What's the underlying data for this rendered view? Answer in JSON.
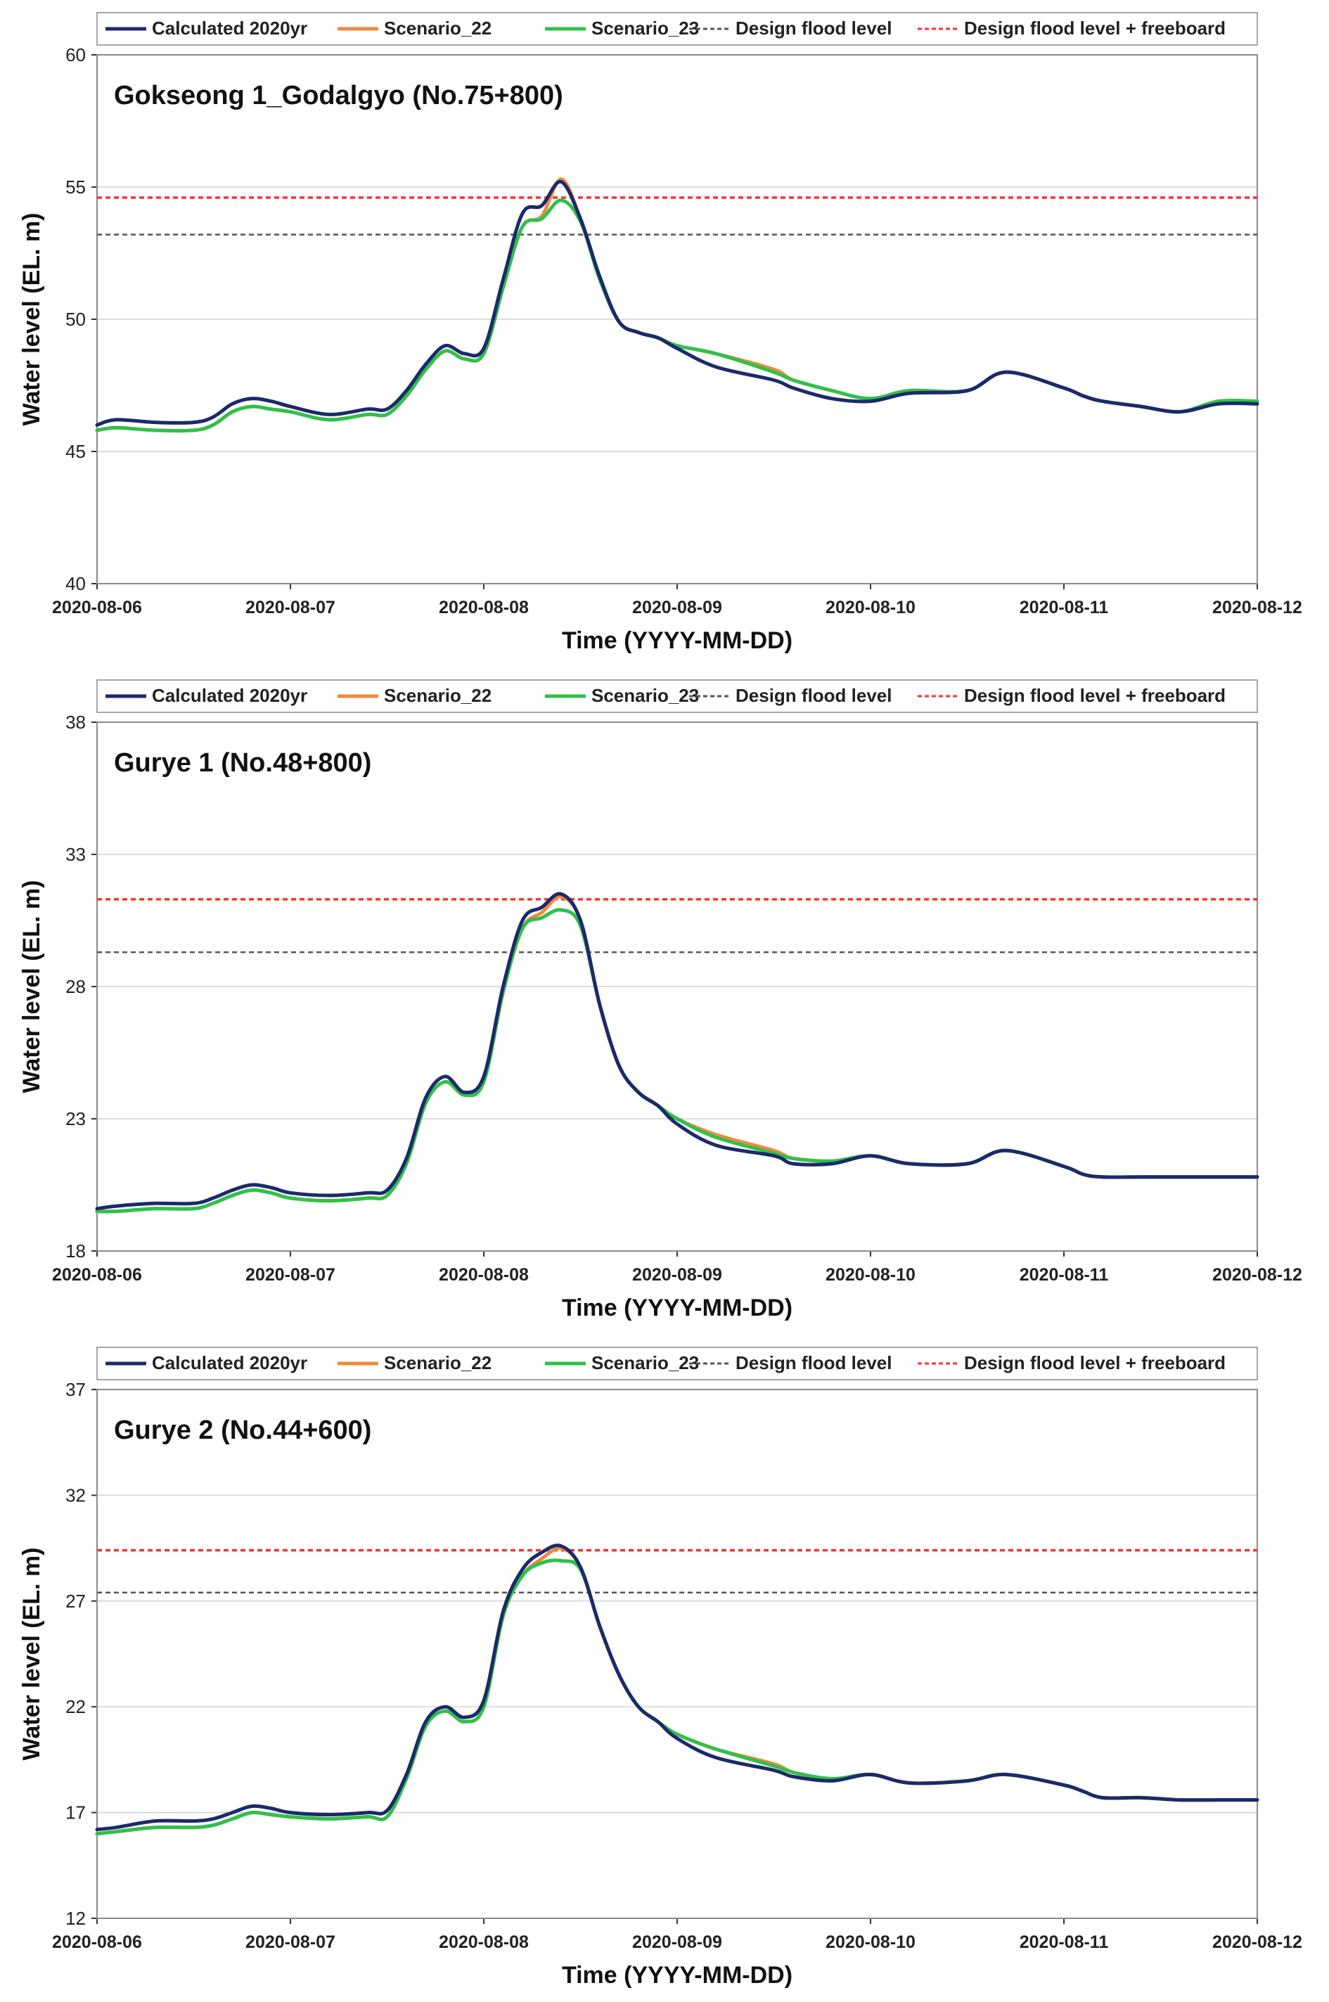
{
  "legend": {
    "entries": [
      {
        "label": "Calculated 2020yr",
        "color": "#1b2a6b",
        "style": "solid"
      },
      {
        "label": "Scenario_22",
        "color": "#f08a3c",
        "style": "solid"
      },
      {
        "label": "Scenario_23",
        "color": "#2fc14a",
        "style": "solid"
      },
      {
        "label": "Design flood level",
        "color": "#555555",
        "style": "dashed"
      },
      {
        "label": "Design flood level + freeboard",
        "color": "#ff3030",
        "style": "dashed"
      }
    ]
  },
  "chart_data": [
    {
      "type": "line",
      "title": "Gokseong 1_Godalgyo (No.75+800)",
      "xlabel": "Time (YYYY-MM-DD)",
      "ylabel": "Water level (EL. m)",
      "x_ticks": [
        "2020-08-06",
        "2020-08-07",
        "2020-08-08",
        "2020-08-09",
        "2020-08-10",
        "2020-08-11",
        "2020-08-12"
      ],
      "xlim": [
        0,
        6
      ],
      "ylim": [
        40,
        60
      ],
      "y_ticks": [
        40,
        45,
        50,
        55,
        60
      ],
      "grid": "horizontal",
      "legend_position": "top",
      "reference_lines": [
        {
          "name": "Design flood level",
          "value": 53.2
        },
        {
          "name": "Design flood level + freeboard",
          "value": 54.6
        }
      ],
      "series": [
        {
          "name": "Calculated 2020yr",
          "x": [
            0,
            0.1,
            0.3,
            0.5,
            0.6,
            0.7,
            0.8,
            0.9,
            1.0,
            1.2,
            1.4,
            1.5,
            1.6,
            1.7,
            1.8,
            1.9,
            2.0,
            2.1,
            2.2,
            2.3,
            2.4,
            2.5,
            2.6,
            2.7,
            2.8,
            2.9,
            3.0,
            3.2,
            3.5,
            3.6,
            3.8,
            4.0,
            4.2,
            4.5,
            4.7,
            5.0,
            5.1,
            5.2,
            5.4,
            5.6,
            5.8,
            6.0
          ],
          "y": [
            46.0,
            46.2,
            46.1,
            46.1,
            46.3,
            46.8,
            47.0,
            46.9,
            46.7,
            46.4,
            46.6,
            46.6,
            47.3,
            48.3,
            49.0,
            48.7,
            48.9,
            51.5,
            54.0,
            54.3,
            55.2,
            53.8,
            51.6,
            49.9,
            49.5,
            49.3,
            48.9,
            48.2,
            47.7,
            47.4,
            47.0,
            46.9,
            47.2,
            47.3,
            48.0,
            47.4,
            47.1,
            46.9,
            46.7,
            46.5,
            46.8,
            46.8
          ]
        },
        {
          "name": "Scenario_22",
          "x": [
            0,
            0.1,
            0.3,
            0.5,
            0.6,
            0.7,
            0.8,
            0.9,
            1.0,
            1.2,
            1.4,
            1.5,
            1.6,
            1.7,
            1.8,
            1.9,
            2.0,
            2.1,
            2.2,
            2.3,
            2.4,
            2.5,
            2.6,
            2.7,
            2.8,
            2.9,
            3.0,
            3.2,
            3.5,
            3.6,
            3.8,
            4.0,
            4.2,
            4.5,
            4.7,
            5.0,
            5.1,
            5.2,
            5.4,
            5.6,
            5.8,
            6.0
          ],
          "y": [
            45.8,
            45.9,
            45.8,
            45.8,
            46.0,
            46.5,
            46.7,
            46.6,
            46.5,
            46.2,
            46.4,
            46.4,
            47.1,
            48.1,
            48.8,
            48.5,
            48.7,
            51.2,
            53.5,
            53.9,
            55.3,
            53.8,
            51.5,
            49.9,
            49.5,
            49.3,
            49.0,
            48.7,
            48.1,
            47.7,
            47.3,
            47.0,
            47.3,
            47.3,
            48.0,
            47.4,
            47.1,
            46.9,
            46.7,
            46.5,
            46.9,
            46.9
          ]
        },
        {
          "name": "Scenario_23",
          "x": [
            0,
            0.1,
            0.3,
            0.5,
            0.6,
            0.7,
            0.8,
            0.9,
            1.0,
            1.2,
            1.4,
            1.5,
            1.6,
            1.7,
            1.8,
            1.9,
            2.0,
            2.1,
            2.2,
            2.3,
            2.4,
            2.5,
            2.6,
            2.7,
            2.8,
            2.9,
            3.0,
            3.2,
            3.5,
            3.6,
            3.8,
            4.0,
            4.2,
            4.5,
            4.7,
            5.0,
            5.1,
            5.2,
            5.4,
            5.6,
            5.8,
            6.0
          ],
          "y": [
            45.8,
            45.9,
            45.8,
            45.8,
            46.0,
            46.5,
            46.7,
            46.6,
            46.5,
            46.2,
            46.4,
            46.4,
            47.1,
            48.1,
            48.8,
            48.5,
            48.7,
            51.2,
            53.5,
            53.8,
            54.5,
            53.7,
            51.5,
            49.9,
            49.5,
            49.3,
            49.0,
            48.7,
            48.0,
            47.7,
            47.3,
            47.0,
            47.3,
            47.3,
            48.0,
            47.4,
            47.1,
            46.9,
            46.7,
            46.5,
            46.9,
            46.9
          ]
        }
      ]
    },
    {
      "type": "line",
      "title": "Gurye 1 (No.48+800)",
      "xlabel": "Time (YYYY-MM-DD)",
      "ylabel": "Water level (EL. m)",
      "x_ticks": [
        "2020-08-06",
        "2020-08-07",
        "2020-08-08",
        "2020-08-09",
        "2020-08-10",
        "2020-08-11",
        "2020-08-12"
      ],
      "xlim": [
        0,
        6
      ],
      "ylim": [
        18,
        38
      ],
      "y_ticks": [
        18,
        23,
        28,
        33,
        38
      ],
      "grid": "horizontal",
      "legend_position": "top",
      "reference_lines": [
        {
          "name": "Design flood level",
          "value": 29.3
        },
        {
          "name": "Design flood level + freeboard",
          "value": 31.3
        }
      ],
      "series": [
        {
          "name": "Calculated 2020yr",
          "x": [
            0,
            0.1,
            0.3,
            0.5,
            0.6,
            0.7,
            0.8,
            0.9,
            1.0,
            1.2,
            1.4,
            1.5,
            1.6,
            1.7,
            1.8,
            1.9,
            2.0,
            2.1,
            2.2,
            2.3,
            2.4,
            2.5,
            2.6,
            2.7,
            2.8,
            2.9,
            3.0,
            3.2,
            3.5,
            3.6,
            3.8,
            4.0,
            4.2,
            4.5,
            4.7,
            5.0,
            5.1,
            5.2,
            5.4,
            5.6,
            5.8,
            6.0
          ],
          "y": [
            19.6,
            19.7,
            19.8,
            19.8,
            20.0,
            20.3,
            20.5,
            20.4,
            20.2,
            20.1,
            20.2,
            20.3,
            21.5,
            23.8,
            24.6,
            24.0,
            24.6,
            28.0,
            30.5,
            31.0,
            31.5,
            30.5,
            27.3,
            25.0,
            24.0,
            23.5,
            22.8,
            22.0,
            21.6,
            21.3,
            21.3,
            21.6,
            21.3,
            21.3,
            21.8,
            21.2,
            20.9,
            20.8,
            20.8,
            20.8,
            20.8,
            20.8
          ]
        },
        {
          "name": "Scenario_22",
          "x": [
            0,
            0.1,
            0.3,
            0.5,
            0.6,
            0.7,
            0.8,
            0.9,
            1.0,
            1.2,
            1.4,
            1.5,
            1.6,
            1.7,
            1.8,
            1.9,
            2.0,
            2.1,
            2.2,
            2.3,
            2.4,
            2.5,
            2.6,
            2.7,
            2.8,
            2.9,
            3.0,
            3.2,
            3.5,
            3.6,
            3.8,
            4.0,
            4.2,
            4.5,
            4.7,
            5.0,
            5.1,
            5.2,
            5.4,
            5.6,
            5.8,
            6.0
          ],
          "y": [
            19.5,
            19.5,
            19.6,
            19.6,
            19.8,
            20.1,
            20.3,
            20.2,
            20.0,
            19.9,
            20.0,
            20.1,
            21.3,
            23.6,
            24.4,
            23.9,
            24.4,
            27.8,
            30.2,
            30.8,
            31.4,
            30.5,
            27.3,
            25.0,
            24.0,
            23.5,
            23.0,
            22.4,
            21.8,
            21.5,
            21.4,
            21.6,
            21.3,
            21.3,
            21.8,
            21.2,
            20.9,
            20.8,
            20.8,
            20.8,
            20.8,
            20.8
          ]
        },
        {
          "name": "Scenario_23",
          "x": [
            0,
            0.1,
            0.3,
            0.5,
            0.6,
            0.7,
            0.8,
            0.9,
            1.0,
            1.2,
            1.4,
            1.5,
            1.6,
            1.7,
            1.8,
            1.9,
            2.0,
            2.1,
            2.2,
            2.3,
            2.4,
            2.5,
            2.6,
            2.7,
            2.8,
            2.9,
            3.0,
            3.2,
            3.5,
            3.6,
            3.8,
            4.0,
            4.2,
            4.5,
            4.7,
            5.0,
            5.1,
            5.2,
            5.4,
            5.6,
            5.8,
            6.0
          ],
          "y": [
            19.5,
            19.5,
            19.6,
            19.6,
            19.8,
            20.1,
            20.3,
            20.2,
            20.0,
            19.9,
            20.0,
            20.1,
            21.3,
            23.6,
            24.4,
            23.9,
            24.4,
            27.8,
            30.2,
            30.6,
            30.9,
            30.3,
            27.3,
            25.0,
            24.0,
            23.5,
            23.0,
            22.3,
            21.7,
            21.5,
            21.4,
            21.6,
            21.3,
            21.3,
            21.8,
            21.2,
            20.9,
            20.8,
            20.8,
            20.8,
            20.8,
            20.8
          ]
        }
      ]
    },
    {
      "type": "line",
      "title": "Gurye 2 (No.44+600)",
      "xlabel": "Time (YYYY-MM-DD)",
      "ylabel": "Water level (EL. m)",
      "x_ticks": [
        "2020-08-06",
        "2020-08-07",
        "2020-08-08",
        "2020-08-09",
        "2020-08-10",
        "2020-08-11",
        "2020-08-12"
      ],
      "xlim": [
        0,
        6
      ],
      "ylim": [
        12,
        37
      ],
      "y_ticks": [
        12,
        17,
        22,
        27,
        32,
        37
      ],
      "grid": "horizontal",
      "legend_position": "top",
      "reference_lines": [
        {
          "name": "Design flood level",
          "value": 27.4
        },
        {
          "name": "Design flood level + freeboard",
          "value": 29.4
        }
      ],
      "series": [
        {
          "name": "Calculated 2020yr",
          "x": [
            0,
            0.1,
            0.3,
            0.5,
            0.6,
            0.7,
            0.8,
            0.9,
            1.0,
            1.2,
            1.4,
            1.5,
            1.6,
            1.7,
            1.8,
            1.9,
            2.0,
            2.1,
            2.2,
            2.3,
            2.4,
            2.5,
            2.6,
            2.7,
            2.8,
            2.9,
            3.0,
            3.2,
            3.5,
            3.6,
            3.8,
            4.0,
            4.2,
            4.5,
            4.7,
            5.0,
            5.1,
            5.2,
            5.4,
            5.6,
            5.8,
            6.0
          ],
          "y": [
            16.2,
            16.3,
            16.6,
            16.6,
            16.7,
            17.0,
            17.3,
            17.2,
            17.0,
            16.9,
            17.0,
            17.1,
            18.8,
            21.3,
            22.0,
            21.5,
            22.3,
            26.5,
            28.5,
            29.3,
            29.6,
            28.6,
            25.8,
            23.5,
            22.0,
            21.3,
            20.5,
            19.6,
            19.0,
            18.7,
            18.5,
            18.8,
            18.4,
            18.5,
            18.8,
            18.3,
            18.0,
            17.7,
            17.7,
            17.6,
            17.6,
            17.6
          ]
        },
        {
          "name": "Scenario_22",
          "x": [
            0,
            0.1,
            0.3,
            0.5,
            0.6,
            0.7,
            0.8,
            0.9,
            1.0,
            1.2,
            1.4,
            1.5,
            1.6,
            1.7,
            1.8,
            1.9,
            2.0,
            2.1,
            2.2,
            2.3,
            2.4,
            2.5,
            2.6,
            2.7,
            2.8,
            2.9,
            3.0,
            3.2,
            3.5,
            3.6,
            3.8,
            4.0,
            4.2,
            4.5,
            4.7,
            5.0,
            5.1,
            5.2,
            5.4,
            5.6,
            5.8,
            6.0
          ],
          "y": [
            16.0,
            16.1,
            16.3,
            16.3,
            16.4,
            16.7,
            17.0,
            16.9,
            16.8,
            16.7,
            16.8,
            16.8,
            18.6,
            21.1,
            21.8,
            21.3,
            22.0,
            26.3,
            28.2,
            29.0,
            29.5,
            28.6,
            25.8,
            23.5,
            22.0,
            21.3,
            20.7,
            20.0,
            19.3,
            18.9,
            18.6,
            18.8,
            18.4,
            18.5,
            18.8,
            18.3,
            18.0,
            17.7,
            17.7,
            17.6,
            17.6,
            17.6
          ]
        },
        {
          "name": "Scenario_23",
          "x": [
            0,
            0.1,
            0.3,
            0.5,
            0.6,
            0.7,
            0.8,
            0.9,
            1.0,
            1.2,
            1.4,
            1.5,
            1.6,
            1.7,
            1.8,
            1.9,
            2.0,
            2.1,
            2.2,
            2.3,
            2.4,
            2.5,
            2.6,
            2.7,
            2.8,
            2.9,
            3.0,
            3.2,
            3.5,
            3.6,
            3.8,
            4.0,
            4.2,
            4.5,
            4.7,
            5.0,
            5.1,
            5.2,
            5.4,
            5.6,
            5.8,
            6.0
          ],
          "y": [
            16.0,
            16.1,
            16.3,
            16.3,
            16.4,
            16.7,
            17.0,
            16.9,
            16.8,
            16.7,
            16.8,
            16.8,
            18.6,
            21.1,
            21.8,
            21.3,
            22.0,
            26.3,
            28.2,
            28.8,
            28.9,
            28.5,
            25.8,
            23.5,
            22.0,
            21.3,
            20.7,
            20.0,
            19.2,
            18.9,
            18.6,
            18.8,
            18.4,
            18.5,
            18.8,
            18.3,
            18.0,
            17.7,
            17.7,
            17.6,
            17.6,
            17.6
          ]
        }
      ]
    }
  ]
}
